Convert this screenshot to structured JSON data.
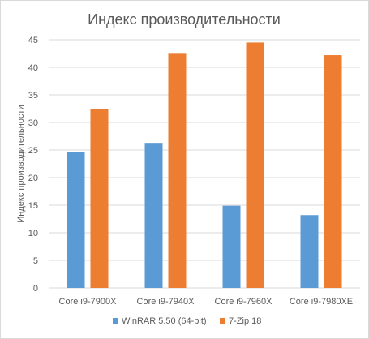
{
  "chart_data": {
    "type": "bar",
    "title": "Индекс производительности",
    "xlabel": "",
    "ylabel": "Индекс производительности",
    "ylim": [
      0,
      45
    ],
    "yticks": [
      0,
      5,
      10,
      15,
      20,
      25,
      30,
      35,
      40,
      45
    ],
    "categories": [
      "Core i9-7900X",
      "Core i9-7940X",
      "Core i9-7960X",
      "Core i9-7980XE"
    ],
    "series": [
      {
        "name": "WinRAR 5.50 (64-bit)",
        "color": "#5b9bd5",
        "values": [
          24.6,
          26.3,
          14.9,
          13.2
        ]
      },
      {
        "name": "7-Zip 18",
        "color": "#ed7d31",
        "values": [
          32.5,
          42.6,
          44.5,
          42.2
        ]
      }
    ],
    "grid": true,
    "legend": "bottom",
    "gridline_color": "#d9d9d9"
  }
}
